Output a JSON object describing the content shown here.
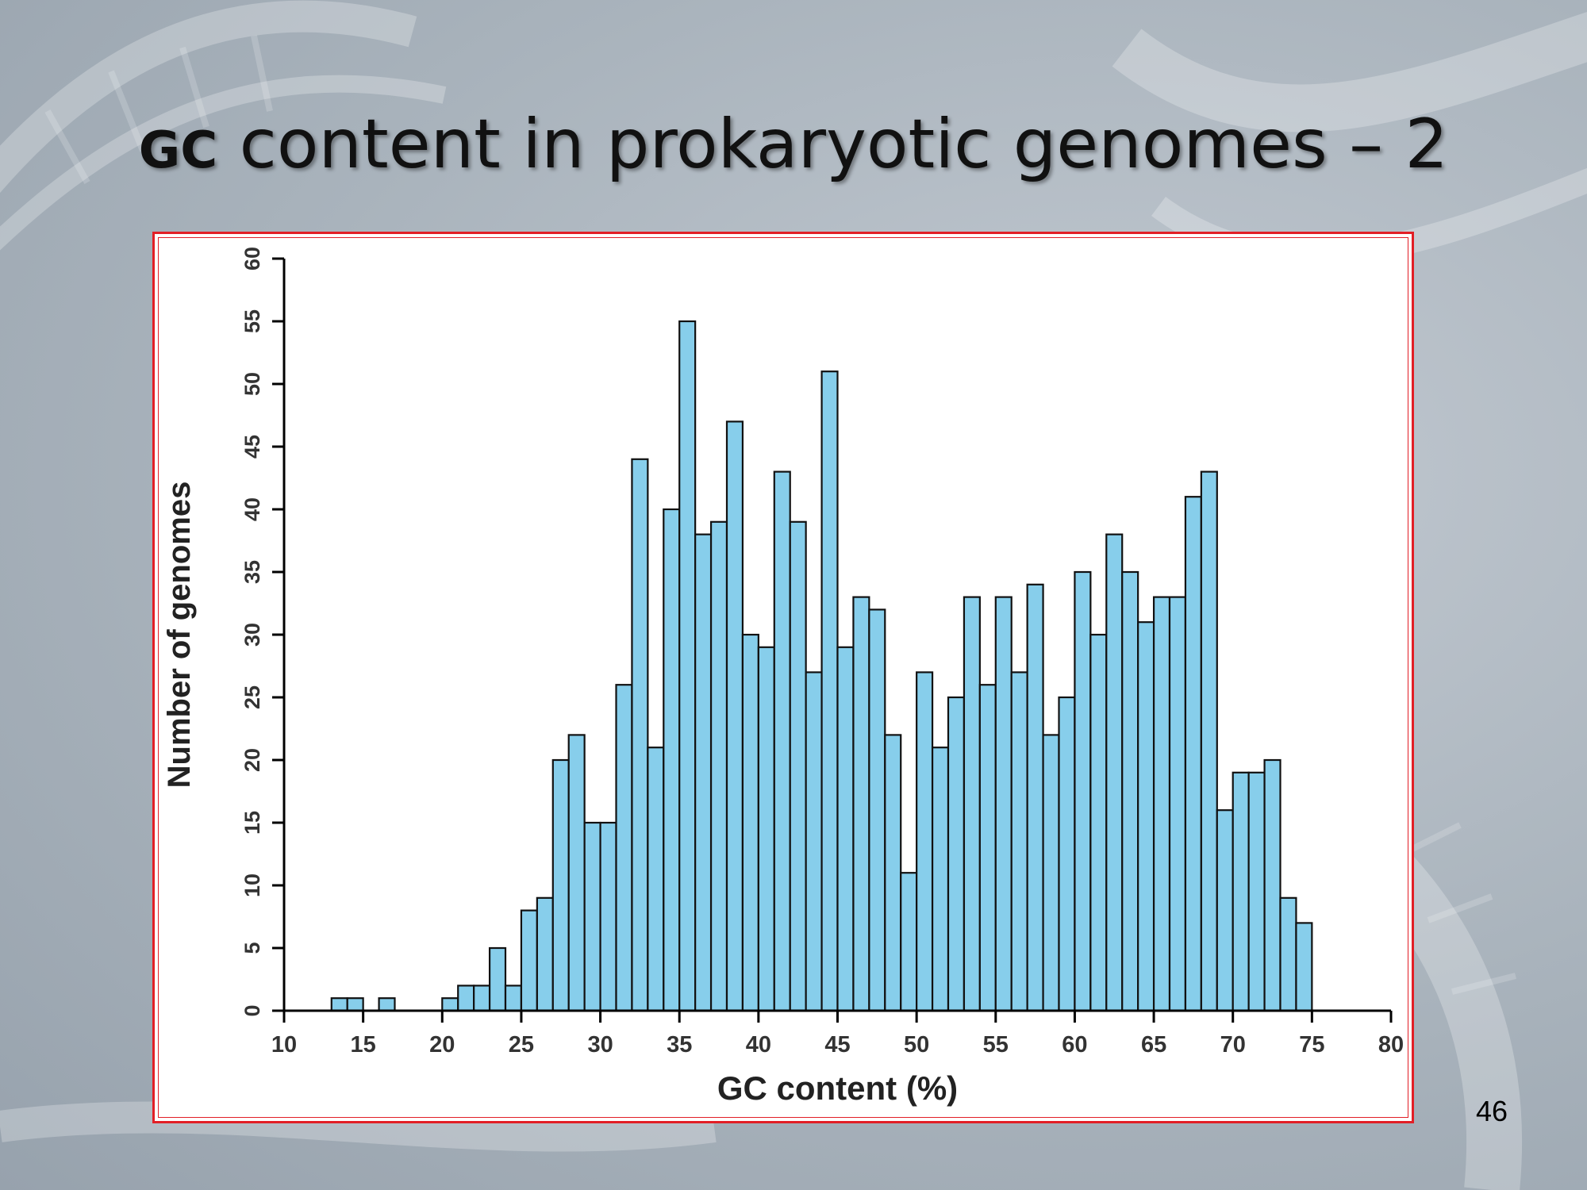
{
  "slide": {
    "title_prefix": "GC",
    "title_rest": " content in prokaryotic genomes – 2",
    "page_number": "46"
  },
  "colors": {
    "bar_fill": "#87ceeb",
    "bar_stroke": "#111111",
    "frame_border": "#e21f26"
  },
  "chart_data": {
    "type": "bar",
    "subtype": "histogram",
    "xlabel": "GC content (%)",
    "ylabel": "Number of genomes",
    "xlim": [
      10,
      80
    ],
    "ylim": [
      0,
      60
    ],
    "xticks": [
      10,
      15,
      20,
      25,
      30,
      35,
      40,
      45,
      50,
      55,
      60,
      65,
      70,
      75,
      80
    ],
    "yticks": [
      0,
      5,
      10,
      15,
      20,
      25,
      30,
      35,
      40,
      45,
      50,
      55,
      60
    ],
    "bin_width": 1,
    "grid": false,
    "legend": "none",
    "bins": [
      {
        "x": 13,
        "count": 1
      },
      {
        "x": 14,
        "count": 1
      },
      {
        "x": 16,
        "count": 1
      },
      {
        "x": 20,
        "count": 1
      },
      {
        "x": 21,
        "count": 2
      },
      {
        "x": 22,
        "count": 2
      },
      {
        "x": 23,
        "count": 5
      },
      {
        "x": 24,
        "count": 2
      },
      {
        "x": 25,
        "count": 8
      },
      {
        "x": 26,
        "count": 9
      },
      {
        "x": 27,
        "count": 20
      },
      {
        "x": 28,
        "count": 22
      },
      {
        "x": 29,
        "count": 15
      },
      {
        "x": 30,
        "count": 15
      },
      {
        "x": 31,
        "count": 26
      },
      {
        "x": 32,
        "count": 44
      },
      {
        "x": 33,
        "count": 21
      },
      {
        "x": 34,
        "count": 40
      },
      {
        "x": 35,
        "count": 55
      },
      {
        "x": 36,
        "count": 38
      },
      {
        "x": 37,
        "count": 39
      },
      {
        "x": 38,
        "count": 47
      },
      {
        "x": 39,
        "count": 30
      },
      {
        "x": 40,
        "count": 29
      },
      {
        "x": 41,
        "count": 43
      },
      {
        "x": 42,
        "count": 39
      },
      {
        "x": 43,
        "count": 27
      },
      {
        "x": 44,
        "count": 51
      },
      {
        "x": 45,
        "count": 29
      },
      {
        "x": 46,
        "count": 33
      },
      {
        "x": 47,
        "count": 32
      },
      {
        "x": 48,
        "count": 22
      },
      {
        "x": 49,
        "count": 11
      },
      {
        "x": 50,
        "count": 27
      },
      {
        "x": 51,
        "count": 21
      },
      {
        "x": 52,
        "count": 25
      },
      {
        "x": 53,
        "count": 33
      },
      {
        "x": 54,
        "count": 26
      },
      {
        "x": 55,
        "count": 33
      },
      {
        "x": 56,
        "count": 27
      },
      {
        "x": 57,
        "count": 34
      },
      {
        "x": 58,
        "count": 22
      },
      {
        "x": 59,
        "count": 25
      },
      {
        "x": 60,
        "count": 35
      },
      {
        "x": 61,
        "count": 30
      },
      {
        "x": 62,
        "count": 38
      },
      {
        "x": 63,
        "count": 35
      },
      {
        "x": 64,
        "count": 31
      },
      {
        "x": 65,
        "count": 33
      },
      {
        "x": 66,
        "count": 33
      },
      {
        "x": 67,
        "count": 41
      },
      {
        "x": 68,
        "count": 43
      },
      {
        "x": 69,
        "count": 16
      },
      {
        "x": 70,
        "count": 19
      },
      {
        "x": 71,
        "count": 19
      },
      {
        "x": 72,
        "count": 20
      },
      {
        "x": 73,
        "count": 9
      },
      {
        "x": 74,
        "count": 7
      }
    ]
  }
}
